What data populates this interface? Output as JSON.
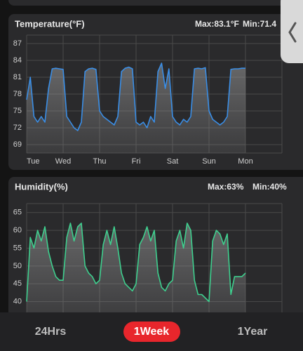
{
  "chart_data": [
    {
      "type": "line",
      "title": "Temperature(°F)",
      "max_label": "Max:83.1°F",
      "min_label": "Min:71.4",
      "xlim": [
        0,
        7
      ],
      "ylim": [
        67.5,
        88.5
      ],
      "xticks": [
        {
          "value": 0,
          "label": "Tue"
        },
        {
          "value": 1,
          "label": "Wed"
        },
        {
          "value": 2,
          "label": "Thu"
        },
        {
          "value": 3,
          "label": "Fri"
        },
        {
          "value": 4,
          "label": "Sat"
        },
        {
          "value": 5,
          "label": "Sun"
        },
        {
          "value": 6,
          "label": "Mon"
        }
      ],
      "yticks": [
        69,
        72,
        75,
        78,
        81,
        84,
        87
      ],
      "grid": true,
      "x": [
        0,
        0.1,
        0.2,
        0.3,
        0.4,
        0.5,
        0.6,
        0.7,
        0.8,
        0.9,
        1,
        1.1,
        1.2,
        1.3,
        1.4,
        1.5,
        1.6,
        1.7,
        1.8,
        1.9,
        2,
        2.1,
        2.2,
        2.3,
        2.4,
        2.5,
        2.6,
        2.7,
        2.8,
        2.9,
        3,
        3.1,
        3.2,
        3.3,
        3.4,
        3.5,
        3.6,
        3.7,
        3.8,
        3.9,
        4,
        4.1,
        4.2,
        4.3,
        4.4,
        4.5,
        4.6,
        4.7,
        4.8,
        4.9,
        5,
        5.1,
        5.2,
        5.3,
        5.4,
        5.5,
        5.6,
        5.7,
        5.8,
        5.9,
        6
      ],
      "series": [
        {
          "color": "#3a8ee6",
          "values": [
            77,
            81,
            74,
            73,
            74,
            73,
            79,
            82.5,
            82.6,
            82.5,
            82.4,
            74,
            73,
            72,
            71.5,
            73,
            82,
            82.5,
            82.6,
            82.4,
            75,
            74,
            73.5,
            73,
            72.5,
            74,
            82,
            82.6,
            82.8,
            82.5,
            73,
            72.5,
            73,
            72,
            74,
            73,
            82,
            83.5,
            79,
            82.5,
            74,
            73,
            72.5,
            73.5,
            73,
            74,
            82.5,
            82.6,
            82.5,
            82.7,
            75,
            73.5,
            73,
            72.5,
            73,
            74,
            82.4,
            82.5,
            82.5,
            82.6,
            82.6
          ]
        }
      ]
    },
    {
      "type": "line",
      "title": "Humidity(%)",
      "max_label": "Max:63%",
      "min_label": "Min:40%",
      "xlim": [
        0,
        7
      ],
      "ylim": [
        35,
        67.5
      ],
      "xticks": [
        0,
        1,
        2,
        3,
        4,
        5,
        6
      ],
      "yticks": [
        40,
        45,
        50,
        55,
        60,
        65
      ],
      "grid": true,
      "x": [
        0,
        0.1,
        0.2,
        0.3,
        0.4,
        0.5,
        0.6,
        0.7,
        0.8,
        0.9,
        1,
        1.1,
        1.2,
        1.3,
        1.4,
        1.5,
        1.6,
        1.7,
        1.8,
        1.9,
        2,
        2.1,
        2.2,
        2.3,
        2.4,
        2.5,
        2.6,
        2.7,
        2.8,
        2.9,
        3,
        3.1,
        3.2,
        3.3,
        3.4,
        3.5,
        3.6,
        3.7,
        3.8,
        3.9,
        4,
        4.1,
        4.2,
        4.3,
        4.4,
        4.5,
        4.6,
        4.7,
        4.8,
        4.9,
        5,
        5.1,
        5.2,
        5.3,
        5.4,
        5.5,
        5.6,
        5.7,
        5.8,
        5.9,
        6
      ],
      "series": [
        {
          "color": "#3ecf8e",
          "values": [
            40,
            58,
            55,
            60,
            57,
            61,
            54,
            50,
            47,
            46,
            46,
            58,
            62,
            57,
            61,
            62,
            50,
            48,
            47,
            45,
            46,
            56,
            60,
            56,
            61,
            55,
            48,
            45,
            44,
            43,
            45,
            56,
            58,
            61,
            57,
            60,
            48,
            44,
            43,
            45,
            46,
            57,
            60,
            55,
            62,
            60,
            46,
            42,
            42,
            41,
            40,
            57,
            60,
            59,
            56,
            59,
            42,
            47,
            47,
            47,
            48
          ]
        }
      ]
    }
  ],
  "tabs": [
    "24Hrs",
    "1Week",
    "1Year"
  ]
}
